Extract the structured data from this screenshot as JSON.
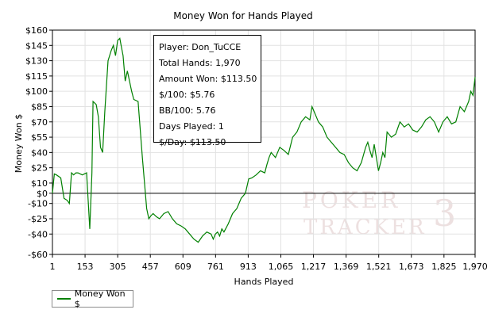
{
  "chart_data": {
    "type": "line",
    "title": "Money Won for Hands Played",
    "xlabel": "Hands Played",
    "ylabel": "Money Won $",
    "xlim": [
      1,
      1970
    ],
    "ylim": [
      -60,
      160
    ],
    "x_ticks": [
      1,
      153,
      305,
      457,
      609,
      761,
      913,
      1065,
      1217,
      1369,
      1521,
      1673,
      1825,
      1970
    ],
    "x_tick_labels": [
      "1",
      "153",
      "305",
      "457",
      "609",
      "761",
      "913",
      "1,065",
      "1,217",
      "1,369",
      "1,521",
      "1,673",
      "1,825",
      "1,970"
    ],
    "y_ticks": [
      160,
      145,
      130,
      115,
      100,
      85,
      70,
      55,
      40,
      25,
      10,
      0,
      -10,
      -25,
      -40,
      -60
    ],
    "y_tick_labels": [
      "$160",
      "$145",
      "$130",
      "$115",
      "$100",
      "$85",
      "$70",
      "$55",
      "$40",
      "$25",
      "$10",
      "$0",
      "-$10",
      "-$25",
      "-$40",
      "-$60"
    ],
    "grid": true,
    "legend_position": "bottom-left",
    "series": [
      {
        "name": "Money Won $",
        "color": "#008000",
        "x": [
          1,
          10,
          20,
          40,
          55,
          70,
          80,
          90,
          100,
          110,
          120,
          140,
          160,
          175,
          185,
          190,
          205,
          215,
          225,
          235,
          245,
          260,
          275,
          285,
          295,
          305,
          315,
          320,
          330,
          340,
          350,
          360,
          370,
          380,
          400,
          420,
          440,
          450,
          460,
          470,
          485,
          500,
          520,
          540,
          560,
          580,
          600,
          620,
          640,
          660,
          680,
          700,
          720,
          740,
          750,
          760,
          770,
          780,
          790,
          800,
          820,
          840,
          860,
          880,
          900,
          915,
          930,
          950,
          970,
          990,
          1000,
          1010,
          1020,
          1040,
          1060,
          1080,
          1100,
          1120,
          1140,
          1160,
          1180,
          1200,
          1210,
          1220,
          1230,
          1240,
          1260,
          1280,
          1300,
          1320,
          1340,
          1360,
          1380,
          1400,
          1420,
          1440,
          1460,
          1470,
          1480,
          1490,
          1500,
          1510,
          1520,
          1530,
          1540,
          1550,
          1560,
          1580,
          1600,
          1620,
          1640,
          1660,
          1680,
          1700,
          1720,
          1740,
          1760,
          1780,
          1800,
          1820,
          1840,
          1860,
          1880,
          1900,
          1920,
          1940,
          1950,
          1960,
          1970
        ],
        "values": [
          0,
          19,
          18,
          15,
          -5,
          -7,
          -10,
          20,
          18,
          20,
          20,
          18,
          20,
          -35,
          20,
          90,
          87,
          75,
          45,
          40,
          80,
          130,
          140,
          145,
          135,
          150,
          152,
          146,
          135,
          110,
          120,
          110,
          100,
          92,
          90,
          35,
          -15,
          -25,
          -22,
          -20,
          -23,
          -25,
          -20,
          -18,
          -25,
          -30,
          -32,
          -35,
          -40,
          -45,
          -48,
          -42,
          -38,
          -40,
          -45,
          -40,
          -38,
          -42,
          -35,
          -38,
          -30,
          -20,
          -15,
          -5,
          0,
          14,
          15,
          18,
          22,
          20,
          28,
          35,
          40,
          35,
          45,
          42,
          38,
          55,
          60,
          70,
          75,
          72,
          85,
          80,
          75,
          70,
          65,
          55,
          50,
          45,
          40,
          38,
          30,
          25,
          22,
          30,
          45,
          50,
          42,
          35,
          48,
          35,
          22,
          30,
          40,
          35,
          60,
          55,
          58,
          70,
          65,
          68,
          62,
          60,
          65,
          72,
          75,
          70,
          60,
          70,
          75,
          68,
          70,
          85,
          80,
          90,
          100,
          96,
          114
        ]
      }
    ],
    "info_box": [
      "Player: Don_TuCCE",
      "Total Hands: 1,970",
      "Amount Won: $113.50",
      "$/100: $5.76",
      "BB/100: 5.76",
      "Days Played: 1",
      "$/Day: $113.50"
    ],
    "watermark": {
      "line1": "POKER",
      "line2": "TRACKER",
      "mark": "3"
    }
  }
}
